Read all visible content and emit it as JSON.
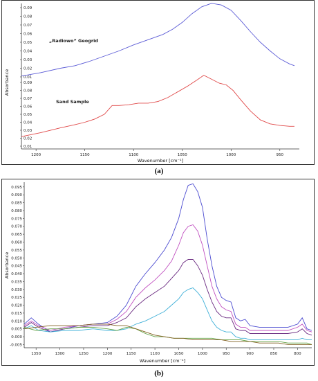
{
  "captions": {
    "a": "(a)",
    "b": "(b)"
  },
  "chart_data": [
    {
      "type": "line",
      "xlabel": "Wavenumber [cm⁻¹]",
      "ylabel": "Absorbance",
      "xlim": [
        1215,
        930
      ],
      "xticks": [
        1200,
        1150,
        1100,
        1050,
        1000,
        950
      ],
      "upper_yticks": [
        "0.01",
        "0.02",
        "0.03",
        "0.04",
        "0.05",
        "0.06",
        "0.07",
        "0.08",
        "0.09"
      ],
      "lower_yticks": [
        "0.01",
        "0.02",
        "0.03",
        "0.04",
        "0.05",
        "0.06",
        "0.07",
        "0.08",
        "0.09"
      ],
      "grid": false,
      "series": [
        {
          "name": "„Radiowo” Geogrid",
          "color": "#5b5bd6",
          "x": [
            1215,
            1195,
            1175,
            1160,
            1145,
            1130,
            1115,
            1100,
            1085,
            1070,
            1060,
            1050,
            1040,
            1030,
            1020,
            1010,
            1000,
            990,
            980,
            970,
            960,
            950,
            940,
            935
          ],
          "y": [
            0.011,
            0.015,
            0.02,
            0.023,
            0.028,
            0.034,
            0.04,
            0.047,
            0.053,
            0.059,
            0.065,
            0.073,
            0.083,
            0.091,
            0.095,
            0.093,
            0.087,
            0.075,
            0.062,
            0.05,
            0.04,
            0.031,
            0.025,
            0.023
          ]
        },
        {
          "name": "Sand Sample",
          "color": "#e04848",
          "x": [
            1215,
            1195,
            1175,
            1160,
            1150,
            1140,
            1130,
            1122,
            1115,
            1105,
            1095,
            1085,
            1075,
            1065,
            1055,
            1045,
            1035,
            1028,
            1020,
            1012,
            1005,
            998,
            990,
            980,
            970,
            960,
            950,
            940,
            935
          ],
          "y": [
            0.022,
            0.027,
            0.033,
            0.037,
            0.04,
            0.044,
            0.05,
            0.061,
            0.061,
            0.062,
            0.064,
            0.064,
            0.066,
            0.071,
            0.078,
            0.085,
            0.093,
            0.099,
            0.094,
            0.089,
            0.087,
            0.08,
            0.068,
            0.054,
            0.043,
            0.038,
            0.036,
            0.035,
            0.035
          ]
        }
      ]
    },
    {
      "type": "line",
      "xlabel": "Wavenumber [cm⁻¹]",
      "ylabel": "Absorbance",
      "xlim": [
        1375,
        770
      ],
      "ylim": [
        -0.007,
        0.098
      ],
      "xticks": [
        1350,
        1300,
        1250,
        1200,
        1150,
        1100,
        1050,
        1000,
        950,
        900,
        850,
        800
      ],
      "yticks": [
        -0.005,
        0,
        0.005,
        0.01,
        0.015,
        0.02,
        0.025,
        0.03,
        0.035,
        0.04,
        0.045,
        0.05,
        0.055,
        0.06,
        0.065,
        0.07,
        0.075,
        0.08,
        0.085,
        0.09,
        0.095
      ],
      "ytick_labels": [
        "-0.005",
        "0.000",
        "0.005",
        "0.010",
        "0.015",
        "0.020",
        "0.025",
        "0.030",
        "0.035",
        "0.040",
        "0.045",
        "0.050",
        "0.055",
        "0.060",
        "0.065",
        "0.070",
        "0.075",
        "0.080",
        "0.085",
        "0.090",
        "0.095"
      ],
      "grid": false,
      "series": [
        {
          "color": "#4a4ad0",
          "x": [
            1375,
            1360,
            1345,
            1320,
            1290,
            1260,
            1230,
            1200,
            1180,
            1160,
            1140,
            1120,
            1100,
            1080,
            1065,
            1050,
            1040,
            1030,
            1020,
            1010,
            1000,
            990,
            980,
            970,
            960,
            950,
            940,
            930,
            920,
            910,
            900,
            880,
            860,
            840,
            820,
            800,
            790,
            780,
            770
          ],
          "y": [
            0.008,
            0.012,
            0.008,
            0.003,
            0.005,
            0.007,
            0.008,
            0.009,
            0.013,
            0.02,
            0.032,
            0.04,
            0.047,
            0.055,
            0.063,
            0.075,
            0.087,
            0.096,
            0.097,
            0.092,
            0.082,
            0.062,
            0.045,
            0.032,
            0.025,
            0.023,
            0.022,
            0.012,
            0.01,
            0.011,
            0.007,
            0.006,
            0.006,
            0.006,
            0.006,
            0.008,
            0.012,
            0.005,
            0.004
          ]
        },
        {
          "color": "#c050c0",
          "x": [
            1375,
            1360,
            1345,
            1320,
            1290,
            1260,
            1230,
            1200,
            1180,
            1160,
            1140,
            1120,
            1100,
            1080,
            1065,
            1050,
            1040,
            1030,
            1020,
            1010,
            1000,
            990,
            980,
            970,
            960,
            950,
            940,
            930,
            920,
            910,
            900,
            880,
            860,
            840,
            820,
            800,
            790,
            780,
            770
          ],
          "y": [
            0.007,
            0.01,
            0.007,
            0.004,
            0.006,
            0.007,
            0.008,
            0.008,
            0.011,
            0.016,
            0.025,
            0.031,
            0.036,
            0.042,
            0.048,
            0.058,
            0.066,
            0.07,
            0.071,
            0.067,
            0.058,
            0.045,
            0.032,
            0.024,
            0.019,
            0.017,
            0.016,
            0.008,
            0.006,
            0.006,
            0.004,
            0.004,
            0.004,
            0.004,
            0.004,
            0.006,
            0.008,
            0.004,
            0.003
          ]
        },
        {
          "color": "#6a2a80",
          "x": [
            1375,
            1360,
            1345,
            1320,
            1290,
            1260,
            1230,
            1200,
            1180,
            1160,
            1140,
            1120,
            1100,
            1080,
            1065,
            1050,
            1040,
            1030,
            1020,
            1010,
            1000,
            990,
            980,
            970,
            960,
            950,
            940,
            930,
            920,
            910,
            900,
            880,
            860,
            840,
            820,
            800,
            790,
            780,
            770
          ],
          "y": [
            0.006,
            0.009,
            0.006,
            0.003,
            0.005,
            0.006,
            0.007,
            0.007,
            0.009,
            0.012,
            0.019,
            0.024,
            0.028,
            0.032,
            0.037,
            0.042,
            0.047,
            0.049,
            0.049,
            0.045,
            0.039,
            0.03,
            0.022,
            0.016,
            0.013,
            0.012,
            0.012,
            0.005,
            0.004,
            0.004,
            0.002,
            0.002,
            0.002,
            0.002,
            0.002,
            0.003,
            0.005,
            0.002,
            0.001
          ]
        },
        {
          "color": "#40b0d8",
          "x": [
            1375,
            1360,
            1345,
            1320,
            1290,
            1260,
            1230,
            1200,
            1180,
            1160,
            1140,
            1120,
            1100,
            1080,
            1065,
            1050,
            1040,
            1030,
            1020,
            1010,
            1000,
            990,
            980,
            970,
            960,
            950,
            940,
            930,
            920,
            910,
            900,
            880,
            860,
            840,
            820,
            800,
            790,
            780,
            770
          ],
          "y": [
            0.005,
            0.007,
            0.004,
            0.003,
            0.004,
            0.004,
            0.005,
            0.004,
            0.004,
            0.005,
            0.008,
            0.01,
            0.013,
            0.016,
            0.02,
            0.024,
            0.028,
            0.03,
            0.031,
            0.028,
            0.024,
            0.017,
            0.01,
            0.006,
            0.004,
            0.003,
            0.003,
            0.0,
            -0.001,
            -0.001,
            -0.002,
            -0.002,
            -0.002,
            -0.002,
            -0.002,
            -0.002,
            -0.001,
            -0.002,
            -0.002
          ]
        },
        {
          "color": "#60a040",
          "x": [
            1375,
            1350,
            1320,
            1290,
            1260,
            1230,
            1200,
            1180,
            1160,
            1140,
            1120,
            1100,
            1080,
            1060,
            1040,
            1020,
            1000,
            980,
            960,
            940,
            920,
            900,
            880,
            860,
            840,
            820,
            800,
            780,
            770
          ],
          "y": [
            0.006,
            0.004,
            0.005,
            0.005,
            0.006,
            0.006,
            0.005,
            0.004,
            0.006,
            0.005,
            0.002,
            0.0,
            0.0,
            -0.001,
            -0.001,
            -0.001,
            -0.001,
            -0.001,
            -0.002,
            -0.002,
            -0.002,
            -0.003,
            -0.003,
            -0.003,
            -0.003,
            -0.004,
            -0.004,
            -0.004,
            -0.005
          ]
        },
        {
          "color": "#806020",
          "x": [
            1375,
            1350,
            1320,
            1290,
            1260,
            1230,
            1200,
            1180,
            1160,
            1140,
            1120,
            1100,
            1080,
            1060,
            1040,
            1020,
            1000,
            980,
            960,
            940,
            920,
            900,
            880,
            860,
            840,
            820,
            800,
            780,
            770
          ],
          "y": [
            0.005,
            0.006,
            0.007,
            0.007,
            0.007,
            0.008,
            0.008,
            0.007,
            0.007,
            0.005,
            0.003,
            0.001,
            0.0,
            -0.001,
            -0.001,
            -0.002,
            -0.002,
            -0.002,
            -0.002,
            -0.003,
            -0.003,
            -0.003,
            -0.004,
            -0.004,
            -0.004,
            -0.005,
            -0.005,
            -0.005,
            -0.005
          ]
        }
      ]
    }
  ]
}
